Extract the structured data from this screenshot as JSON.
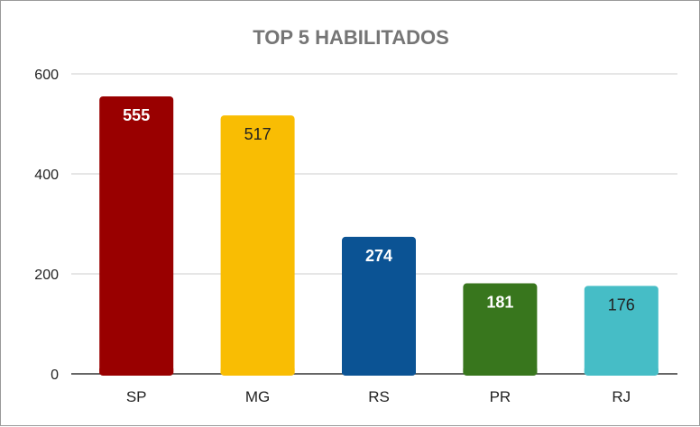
{
  "chart_data": {
    "type": "bar",
    "title": "TOP 5 HABILITADOS",
    "xlabel": "",
    "ylabel": "",
    "categories": [
      "SP",
      "MG",
      "RS",
      "PR",
      "RJ"
    ],
    "values": [
      555,
      517,
      274,
      181,
      176
    ],
    "colors": [
      "#990000",
      "#f9bd03",
      "#0b5394",
      "#38761d",
      "#46bdc6"
    ],
    "label_colors": [
      "#ffffff",
      "#222222",
      "#ffffff",
      "#ffffff",
      "#222222"
    ],
    "ylim": [
      0,
      600
    ],
    "yticks": [
      0,
      200,
      400,
      600
    ],
    "grid": true,
    "legend": "none"
  }
}
